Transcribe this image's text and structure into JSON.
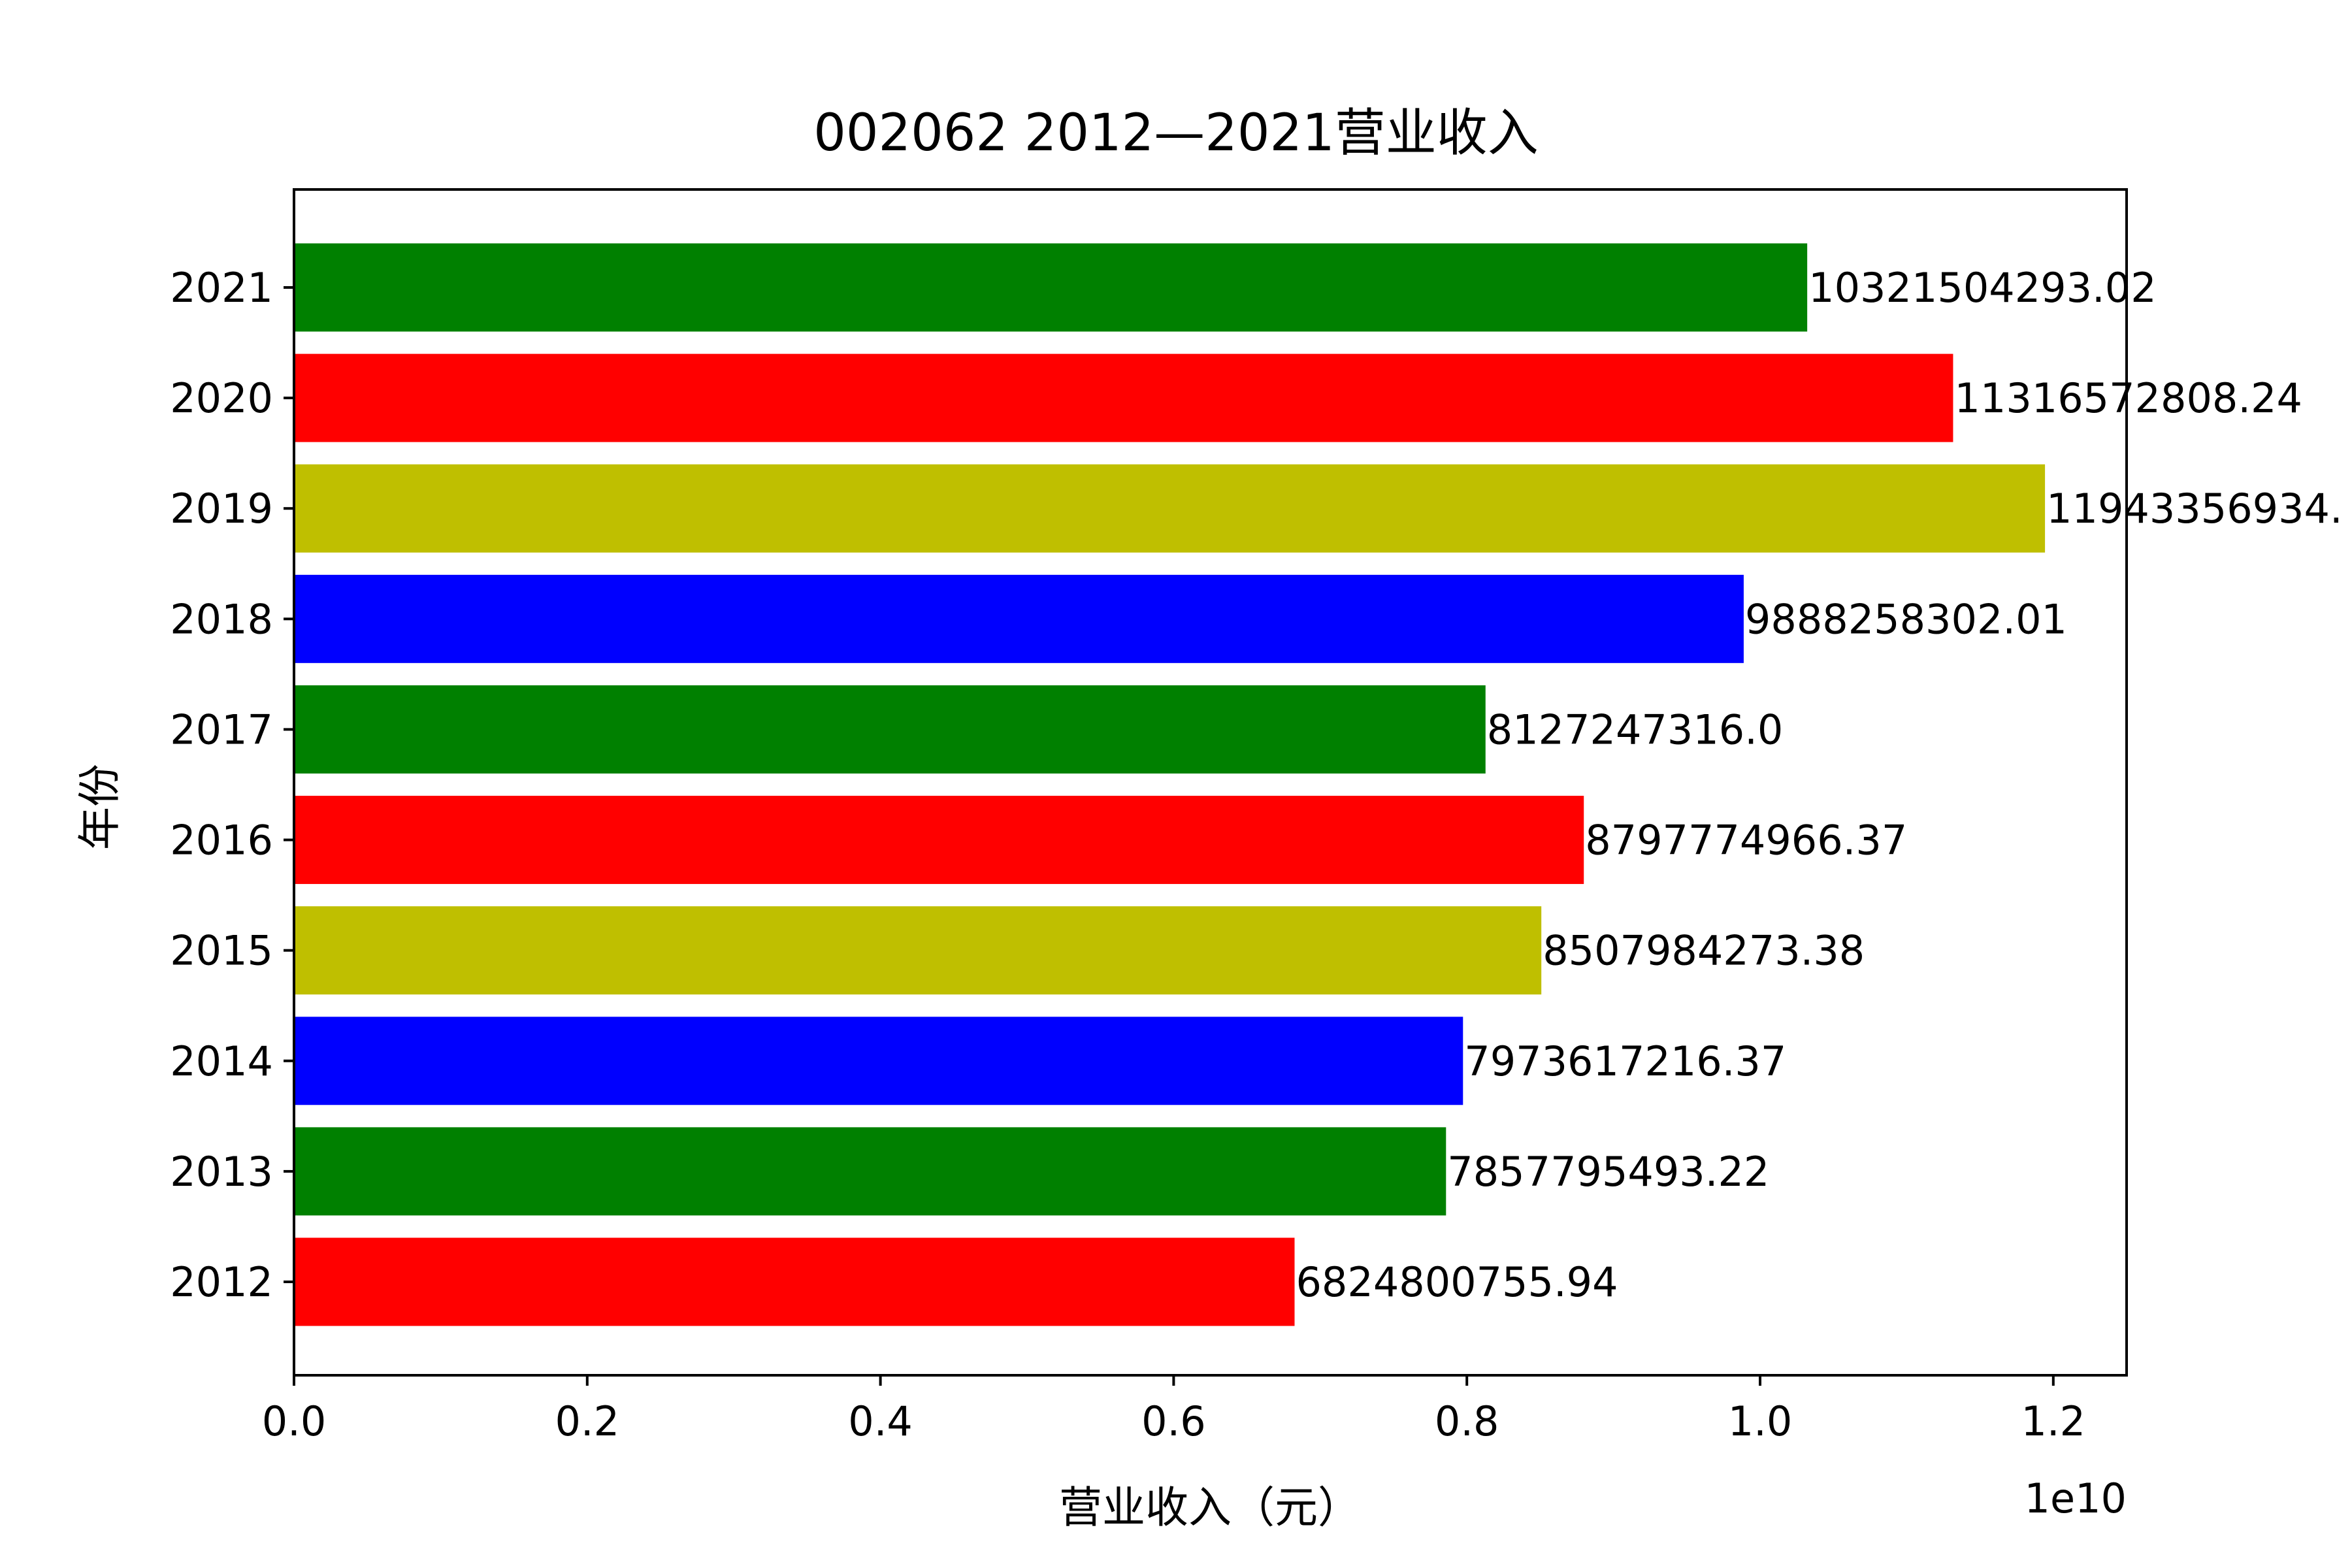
{
  "chart_data": {
    "type": "bar",
    "orientation": "horizontal",
    "title": "002062 2012—2021营业收入",
    "xlabel": "营业收入（元）",
    "ylabel": "年份",
    "x_scale_label": "1e10",
    "xlim": [
      0,
      12500000000
    ],
    "x_ticks": [
      0,
      2000000000,
      4000000000,
      6000000000,
      8000000000,
      10000000000,
      12000000000
    ],
    "x_tick_labels": [
      "0.0",
      "0.2",
      "0.4",
      "0.6",
      "0.8",
      "1.0",
      "1.2"
    ],
    "grid": false,
    "categories": [
      "2012",
      "2013",
      "2014",
      "2015",
      "2016",
      "2017",
      "2018",
      "2019",
      "2020",
      "2021"
    ],
    "values": [
      6824800755.94,
      7857795493.22,
      7973617216.37,
      8507984273.38,
      8797774966.37,
      8127247316.0,
      9888258302.01,
      11943356934,
      11316572808.24,
      10321504293.02
    ],
    "value_labels": [
      "6824800755.94",
      "7857795493.22",
      "7973617216.37",
      "8507984273.38",
      "8797774966.37",
      "8127247316.0",
      "9888258302.01",
      "11943356934.",
      "11316572808.24",
      "10321504293.02"
    ],
    "colors": [
      "#ff0000",
      "#008000",
      "#0000ff",
      "#bfbf00",
      "#ff0000",
      "#008000",
      "#0000ff",
      "#bfbf00",
      "#ff0000",
      "#008000"
    ]
  }
}
